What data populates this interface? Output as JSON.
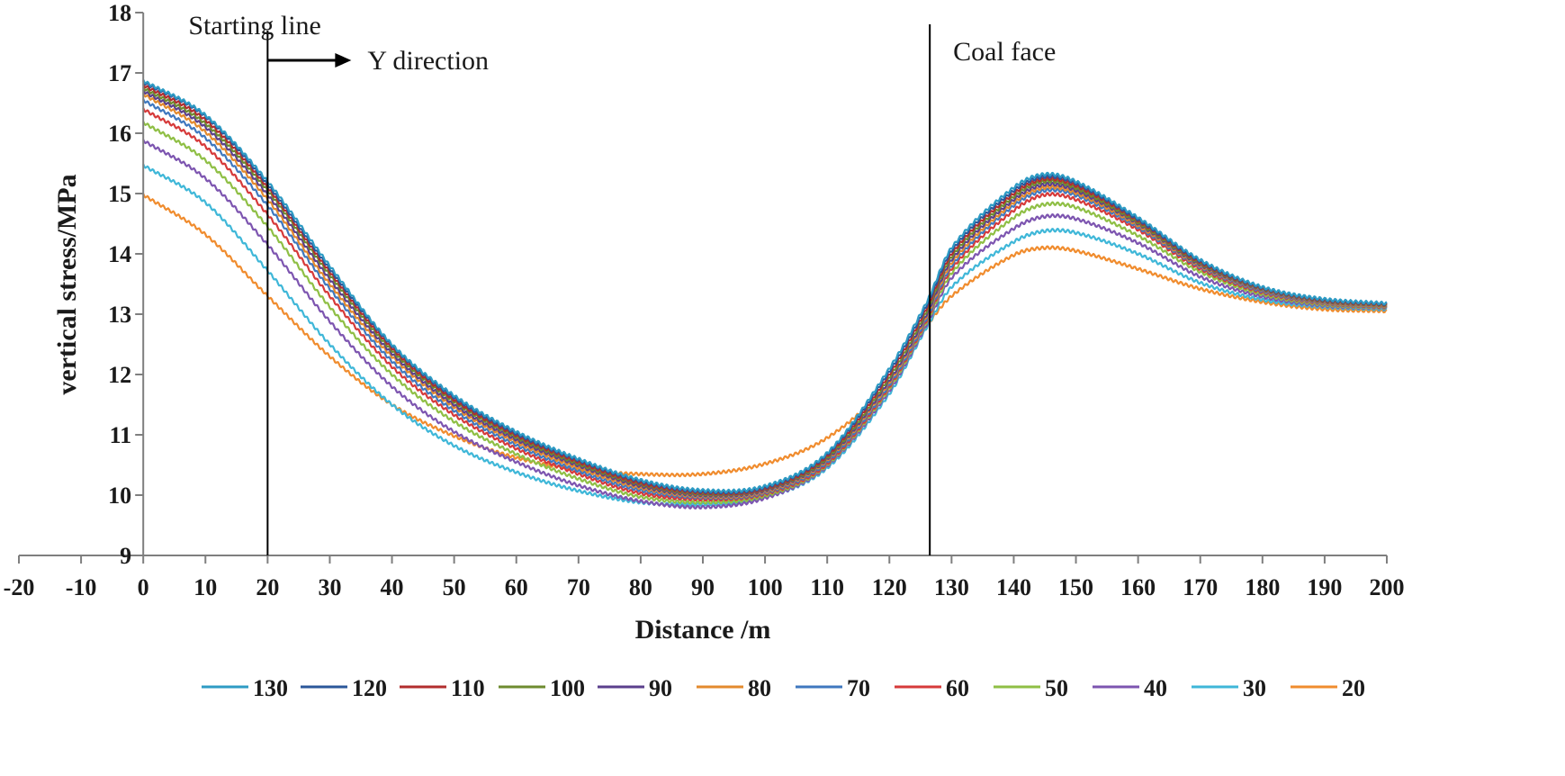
{
  "chart_data": {
    "type": "line",
    "title": "",
    "xlabel": "Distance /m",
    "ylabel": "vertical stress/MPa",
    "xlim": [
      -20,
      200
    ],
    "ylim": [
      9,
      18
    ],
    "xticks": [
      "-20",
      "-10",
      "0",
      "10",
      "20",
      "30",
      "40",
      "50",
      "60",
      "70",
      "80",
      "90",
      "100",
      "110",
      "120",
      "130",
      "140",
      "150",
      "160",
      "170",
      "180",
      "190",
      "200"
    ],
    "yticks": [
      "9",
      "10",
      "11",
      "12",
      "13",
      "14",
      "15",
      "16",
      "17",
      "18"
    ],
    "grid": false,
    "legend_position": "bottom",
    "x": [
      0,
      10,
      20,
      30,
      40,
      50,
      60,
      70,
      80,
      90,
      100,
      110,
      120,
      126,
      130,
      140,
      145,
      150,
      160,
      170,
      180,
      190,
      200
    ],
    "series": [
      {
        "name": "130",
        "color": "#2e9bc4",
        "values": [
          16.87,
          16.3,
          15.2,
          13.8,
          12.5,
          11.65,
          11.05,
          10.6,
          10.25,
          10.08,
          10.15,
          10.7,
          12.1,
          13.2,
          14.1,
          15.1,
          15.32,
          15.2,
          14.6,
          13.9,
          13.45,
          13.25,
          13.18
        ]
      },
      {
        "name": "120",
        "color": "#2b579a",
        "values": [
          16.85,
          16.28,
          15.15,
          13.75,
          12.48,
          11.62,
          11.02,
          10.58,
          10.23,
          10.06,
          10.13,
          10.68,
          12.05,
          13.15,
          14.05,
          15.05,
          15.28,
          15.17,
          14.57,
          13.88,
          13.44,
          13.24,
          13.17
        ]
      },
      {
        "name": "110",
        "color": "#b22d2d",
        "values": [
          16.8,
          16.22,
          15.1,
          13.7,
          12.44,
          11.58,
          10.99,
          10.55,
          10.2,
          10.04,
          10.11,
          10.65,
          12.0,
          13.1,
          14.0,
          15.0,
          15.24,
          15.13,
          14.55,
          13.86,
          13.43,
          13.23,
          13.16
        ]
      },
      {
        "name": "100",
        "color": "#6e8b2f",
        "values": [
          16.75,
          16.16,
          15.05,
          13.65,
          12.4,
          11.55,
          10.96,
          10.52,
          10.18,
          10.02,
          10.1,
          10.62,
          11.95,
          13.05,
          13.95,
          14.95,
          15.2,
          15.09,
          14.52,
          13.84,
          13.42,
          13.22,
          13.15
        ]
      },
      {
        "name": "90",
        "color": "#5b3f8c",
        "values": [
          16.7,
          16.1,
          14.98,
          13.58,
          12.35,
          11.5,
          10.92,
          10.49,
          10.15,
          10.0,
          10.08,
          10.6,
          11.9,
          13.0,
          13.9,
          14.9,
          15.15,
          15.05,
          14.5,
          13.82,
          13.41,
          13.21,
          13.15
        ]
      },
      {
        "name": "80",
        "color": "#e38a2d",
        "values": [
          16.65,
          16.02,
          14.9,
          13.5,
          12.3,
          11.46,
          10.88,
          10.45,
          10.12,
          9.98,
          10.06,
          10.58,
          11.87,
          12.97,
          13.85,
          14.85,
          15.1,
          15.01,
          14.47,
          13.8,
          13.4,
          13.2,
          13.14
        ]
      },
      {
        "name": "70",
        "color": "#3f78bf",
        "values": [
          16.55,
          15.92,
          14.8,
          13.42,
          12.22,
          11.4,
          10.83,
          10.4,
          10.08,
          9.96,
          10.04,
          10.55,
          11.83,
          12.93,
          13.8,
          14.8,
          15.05,
          14.97,
          14.44,
          13.78,
          13.38,
          13.19,
          13.13
        ]
      },
      {
        "name": "60",
        "color": "#d63a3a",
        "values": [
          16.4,
          15.78,
          14.65,
          13.3,
          12.13,
          11.33,
          10.77,
          10.35,
          10.03,
          9.93,
          10.02,
          10.52,
          11.8,
          12.9,
          13.75,
          14.72,
          14.98,
          14.9,
          14.4,
          13.75,
          13.36,
          13.18,
          13.12
        ]
      },
      {
        "name": "50",
        "color": "#8fbf45",
        "values": [
          16.18,
          15.55,
          14.45,
          13.12,
          12.0,
          11.22,
          10.68,
          10.27,
          9.97,
          9.88,
          9.99,
          10.5,
          11.77,
          12.87,
          13.68,
          14.6,
          14.82,
          14.77,
          14.3,
          13.7,
          13.33,
          13.16,
          13.11
        ]
      },
      {
        "name": "40",
        "color": "#7d55b0",
        "values": [
          15.88,
          15.25,
          14.15,
          12.88,
          11.8,
          11.05,
          10.55,
          10.16,
          9.9,
          9.8,
          9.95,
          10.48,
          11.73,
          12.83,
          13.6,
          14.42,
          14.62,
          14.58,
          14.18,
          13.62,
          13.29,
          13.14,
          13.1
        ]
      },
      {
        "name": "30",
        "color": "#3fb7d8",
        "values": [
          15.47,
          14.85,
          13.72,
          12.5,
          11.5,
          10.82,
          10.38,
          10.07,
          9.88,
          9.85,
          9.96,
          10.45,
          11.68,
          12.78,
          13.45,
          14.2,
          14.38,
          14.35,
          14.0,
          13.52,
          13.24,
          13.12,
          13.08
        ]
      },
      {
        "name": "20",
        "color": "#f08c2e",
        "values": [
          14.98,
          14.32,
          13.3,
          12.3,
          11.5,
          10.98,
          10.62,
          10.42,
          10.35,
          10.35,
          10.52,
          10.95,
          11.85,
          12.8,
          13.3,
          13.98,
          14.1,
          14.05,
          13.75,
          13.42,
          13.2,
          13.08,
          13.05
        ]
      }
    ],
    "annotations": [
      {
        "id": "starting",
        "text": "Starting line",
        "x": 20
      },
      {
        "id": "ydir",
        "text": "Y direction"
      },
      {
        "id": "coal",
        "text": "Coal face",
        "x": 126.5
      }
    ]
  }
}
